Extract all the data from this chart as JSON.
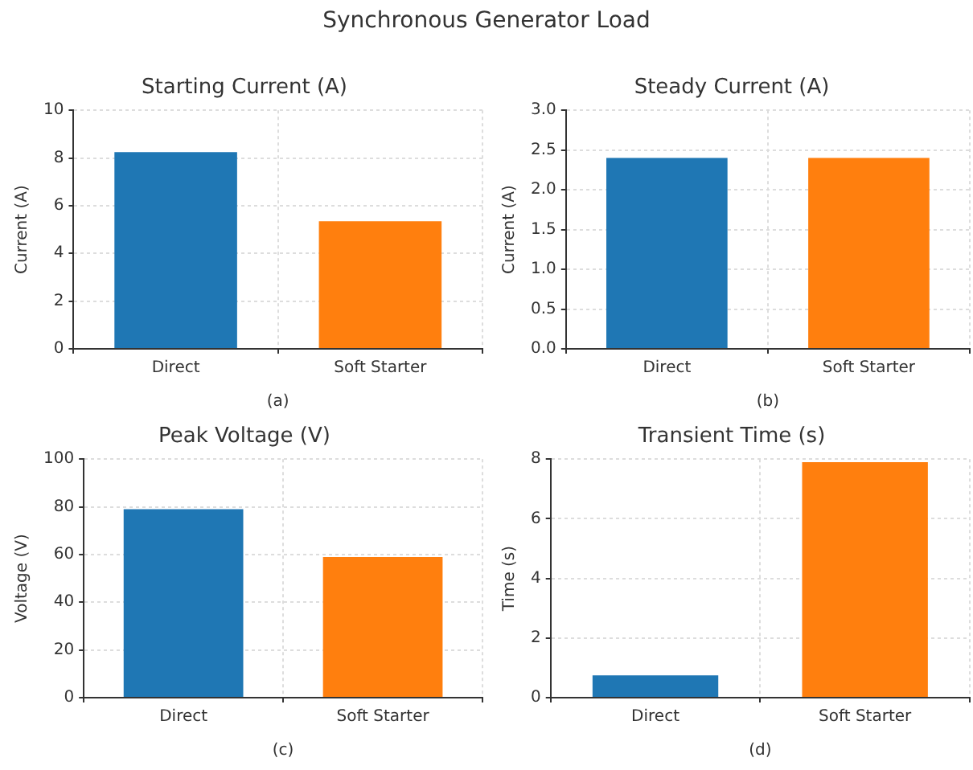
{
  "chart_data": [
    {
      "type": "other",
      "title": "Synchronous Generator Load"
    },
    {
      "type": "bar",
      "title": "Starting Current (A)",
      "xlabel": "(a)",
      "ylabel": "Current (A)",
      "categories": [
        "Direct",
        "Soft Starter"
      ],
      "values": [
        8.25,
        5.35
      ],
      "colors": [
        "#1f77b4",
        "#ff7f0e"
      ],
      "ylim": [
        0,
        10
      ],
      "yticks": [
        0,
        2,
        4,
        6,
        8,
        10
      ],
      "grid": true
    },
    {
      "type": "bar",
      "title": "Steady Current (A)",
      "xlabel": "(b)",
      "ylabel": "Current (A)",
      "categories": [
        "Direct",
        "Soft Starter"
      ],
      "values": [
        2.4,
        2.4
      ],
      "colors": [
        "#1f77b4",
        "#ff7f0e"
      ],
      "ylim": [
        0,
        3
      ],
      "yticks": [
        {
          "value": 0,
          "label": "0.0"
        },
        {
          "value": 0.5,
          "label": "0.5"
        },
        {
          "value": 1,
          "label": "1.0"
        },
        {
          "value": 1.5,
          "label": "1.5"
        },
        {
          "value": 2,
          "label": "2.0"
        },
        {
          "value": 2.5,
          "label": "2.5"
        },
        {
          "value": 3,
          "label": "3.0"
        }
      ],
      "grid": true
    },
    {
      "type": "bar",
      "title": "Peak Voltage (V)",
      "xlabel": "(c)",
      "ylabel": "Voltage (V)",
      "categories": [
        "Direct",
        "Soft Starter"
      ],
      "values": [
        79,
        59
      ],
      "colors": [
        "#1f77b4",
        "#ff7f0e"
      ],
      "ylim": [
        0,
        100
      ],
      "yticks": [
        0,
        20,
        40,
        60,
        80,
        100
      ],
      "grid": true
    },
    {
      "type": "bar",
      "title": "Transient Time (s)",
      "xlabel": "(d)",
      "ylabel": "Time (s)",
      "categories": [
        "Direct",
        "Soft Starter"
      ],
      "values": [
        0.75,
        7.9
      ],
      "colors": [
        "#1f77b4",
        "#ff7f0e"
      ],
      "ylim": [
        0,
        8
      ],
      "yticks": [
        0,
        2,
        4,
        6,
        8
      ],
      "grid": true
    }
  ]
}
